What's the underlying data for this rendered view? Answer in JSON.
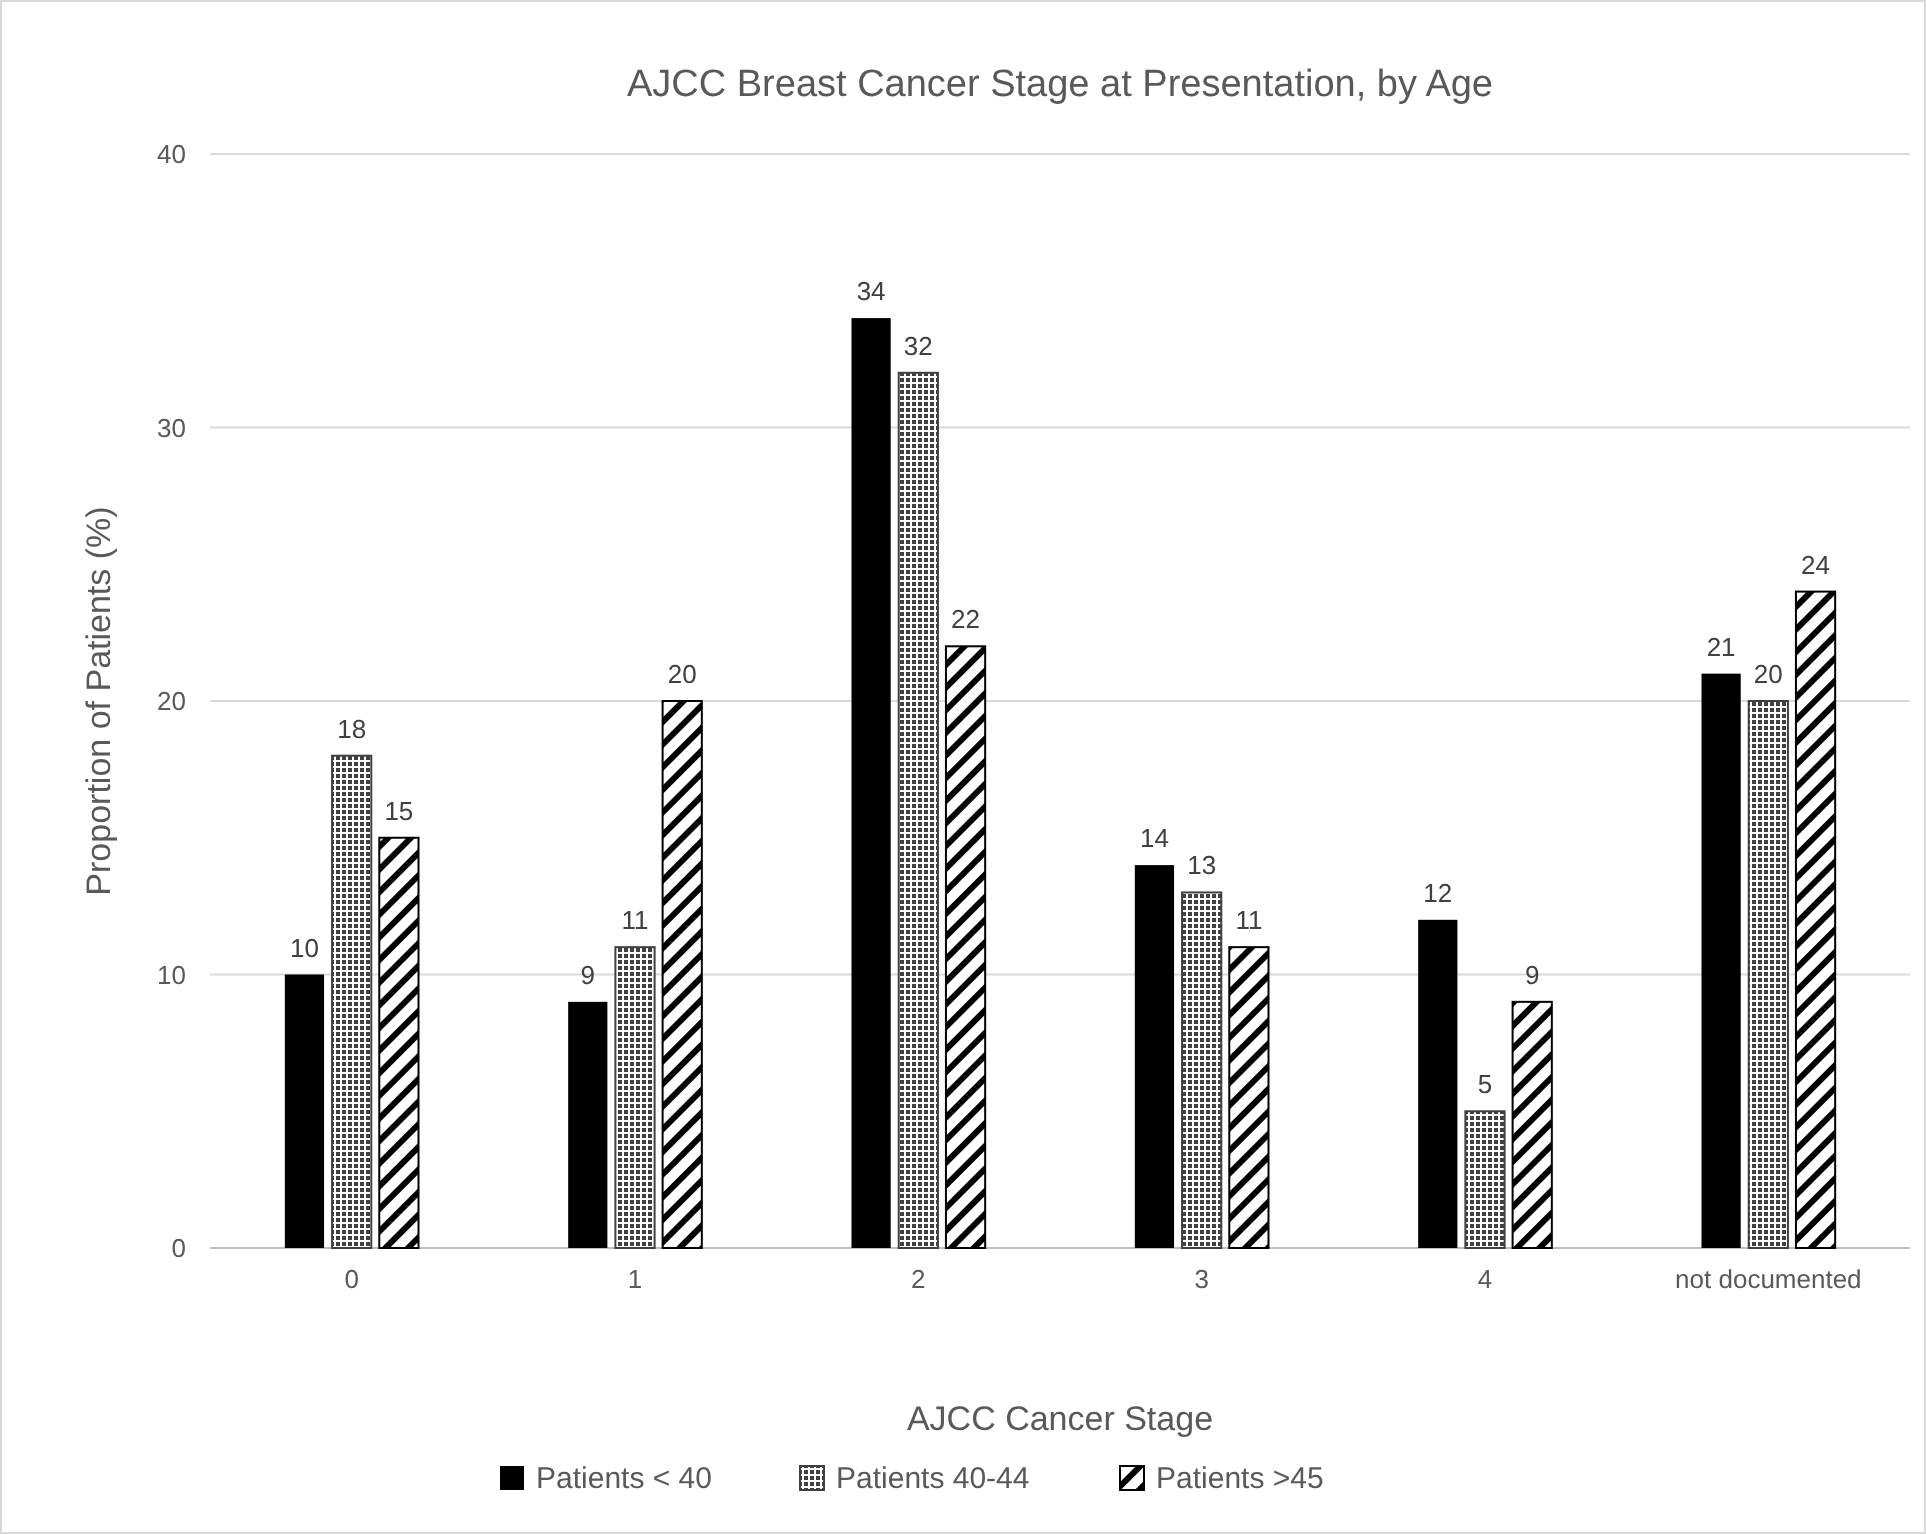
{
  "chart_data": {
    "type": "bar",
    "title": "AJCC Breast Cancer Stage at Presentation, by Age",
    "xlabel": "AJCC Cancer Stage",
    "ylabel": "Proportion of Patients (%)",
    "categories": [
      "0",
      "1",
      "2",
      "3",
      "4",
      "not documented"
    ],
    "series": [
      {
        "name": "Patients < 40",
        "color": "#000000",
        "values": [
          10,
          9,
          34,
          14,
          12,
          21
        ]
      },
      {
        "name": "Patients 40-44",
        "color": "#404040",
        "values": [
          18,
          11,
          32,
          13,
          5,
          20
        ]
      },
      {
        "name": "Patients >45",
        "color": "#000000",
        "values": [
          15,
          20,
          22,
          11,
          9,
          24
        ]
      }
    ],
    "ylim": [
      0,
      40
    ],
    "yticks": [
      0,
      10,
      20,
      30,
      40
    ],
    "grid": "y",
    "legend": "bottom",
    "data_labels": true
  }
}
